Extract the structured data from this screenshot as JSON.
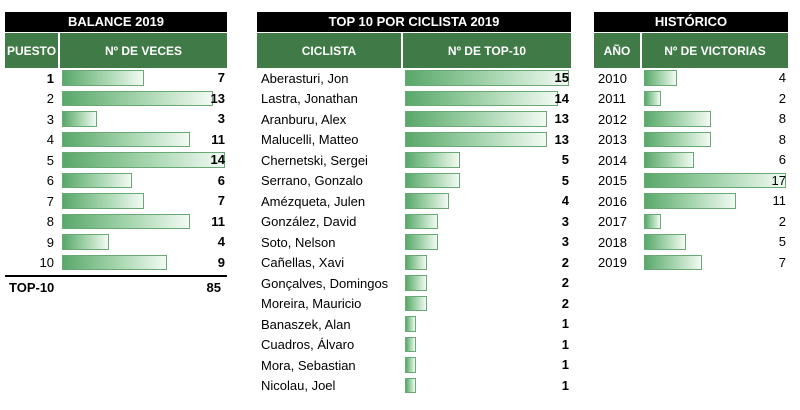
{
  "balance": {
    "title": "BALANCE 2019",
    "col_puesto": "PUESTO",
    "col_veces": "Nº DE VECES",
    "max": 14,
    "rows": [
      {
        "puesto": "1",
        "veces": 7
      },
      {
        "puesto": "2",
        "veces": 13
      },
      {
        "puesto": "3",
        "veces": 3
      },
      {
        "puesto": "4",
        "veces": 11
      },
      {
        "puesto": "5",
        "veces": 14
      },
      {
        "puesto": "6",
        "veces": 6
      },
      {
        "puesto": "7",
        "veces": 7
      },
      {
        "puesto": "8",
        "veces": 11
      },
      {
        "puesto": "9",
        "veces": 4
      },
      {
        "puesto": "10",
        "veces": 9
      }
    ],
    "total_label": "TOP-10",
    "total_value": "85"
  },
  "top10": {
    "title": "TOP 10 POR CICLISTA 2019",
    "col_ciclista": "CICLISTA",
    "col_top10": "Nº DE TOP-10",
    "max": 15,
    "rows": [
      {
        "name": "Aberasturi, Jon",
        "value": 15
      },
      {
        "name": "Lastra, Jonathan",
        "value": 14
      },
      {
        "name": "Aranburu, Alex",
        "value": 13
      },
      {
        "name": "Malucelli, Matteo",
        "value": 13
      },
      {
        "name": "Chernetski, Sergei",
        "value": 5
      },
      {
        "name": "Serrano, Gonzalo",
        "value": 5
      },
      {
        "name": "Amézqueta, Julen",
        "value": 4
      },
      {
        "name": "González, David",
        "value": 3
      },
      {
        "name": "Soto, Nelson",
        "value": 3
      },
      {
        "name": "Cañellas, Xavi",
        "value": 2
      },
      {
        "name": "Gonçalves, Domingos",
        "value": 2
      },
      {
        "name": "Moreira, Mauricio",
        "value": 2
      },
      {
        "name": "Banaszek, Alan",
        "value": 1
      },
      {
        "name": "Cuadros, Álvaro",
        "value": 1
      },
      {
        "name": "Mora, Sebastian",
        "value": 1
      },
      {
        "name": "Nicolau, Joel",
        "value": 1
      }
    ]
  },
  "historico": {
    "title": "HISTÓRICO",
    "col_anio": "AÑO",
    "col_victorias": "Nº DE VICTORIAS",
    "max": 17,
    "rows": [
      {
        "year": "2010",
        "value": 4
      },
      {
        "year": "2011",
        "value": 2
      },
      {
        "year": "2012",
        "value": 8
      },
      {
        "year": "2013",
        "value": 8
      },
      {
        "year": "2014",
        "value": 6
      },
      {
        "year": "2015",
        "value": 17
      },
      {
        "year": "2016",
        "value": 11
      },
      {
        "year": "2017",
        "value": 2
      },
      {
        "year": "2018",
        "value": 5
      },
      {
        "year": "2019",
        "value": 7
      }
    ]
  },
  "colors": {
    "header_bg": "#000000",
    "subheader_bg": "#3f7a47",
    "bar": "#59a86a"
  }
}
